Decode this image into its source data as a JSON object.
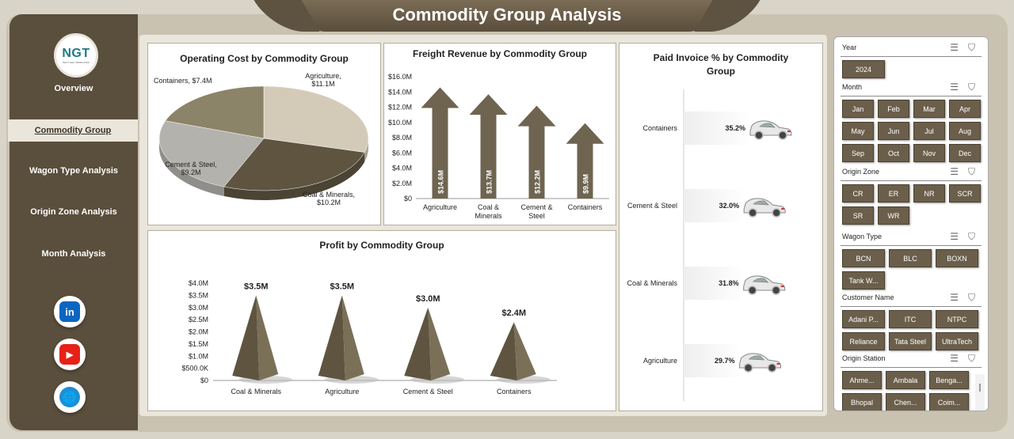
{
  "title": "Commodity Group Analysis",
  "logo": {
    "text": "NGT",
    "sub": "NEXT GEN TEMPLATES"
  },
  "nav": [
    {
      "label": "Overview",
      "active": false
    },
    {
      "label": "Commodity Group",
      "active": true
    },
    {
      "label": "Wagon Type Analysis",
      "active": false
    },
    {
      "label": "Origin Zone Analysis",
      "active": false
    },
    {
      "label": "Month Analysis",
      "active": false
    }
  ],
  "social": [
    {
      "icon": "linkedin-icon",
      "text": "in",
      "color": "#0a66c2"
    },
    {
      "icon": "youtube-icon",
      "text": "▶",
      "color": "#e62117"
    },
    {
      "icon": "globe-icon",
      "text": "🌐",
      "color": "#1c8fd6"
    }
  ],
  "operating_cost": {
    "title": "Operating Cost by Commodity Group",
    "chart_data": {
      "type": "pie",
      "categories": [
        "Agriculture",
        "Coal & Minerals",
        "Cement & Steel",
        "Containers"
      ],
      "values": [
        11.1,
        10.2,
        9.2,
        7.4
      ],
      "labels": [
        "Agriculture, $11.1M",
        "Coal & Minerals, $10.2M",
        "Cement & Steel, $9.2M",
        "Containers, $7.4M"
      ],
      "colors": [
        "#d3cbb8",
        "#5e5440",
        "#b4b2ad",
        "#8c8468"
      ]
    }
  },
  "freight_revenue": {
    "title": "Freight Revenue by Commodity Group",
    "chart_data": {
      "type": "bar",
      "categories": [
        "Agriculture",
        "Coal & Minerals",
        "Cement & Steel",
        "Containers"
      ],
      "values": [
        14.6,
        13.7,
        12.2,
        9.9
      ],
      "data_labels": [
        "$14.6M",
        "$13.7M",
        "$12.2M",
        "$9.9M"
      ],
      "yticks": [
        "$0",
        "$2.0M",
        "$4.0M",
        "$6.0M",
        "$8.0M",
        "$10.0M",
        "$12.0M",
        "$14.0M",
        "$16.0M"
      ],
      "ylim": [
        0,
        16
      ]
    }
  },
  "paid_invoice": {
    "title_line1": "Paid Invoice % by Commodity",
    "title_line2": "Group",
    "chart_data": {
      "type": "bar",
      "categories": [
        "Containers",
        "Cement & Steel",
        "Coal & Minerals",
        "Agriculture"
      ],
      "values": [
        35.2,
        32.0,
        31.8,
        29.7
      ],
      "data_labels": [
        "35.2%",
        "32.0%",
        "31.8%",
        "29.7%"
      ]
    }
  },
  "profit": {
    "title": "Profit by Commodity Group",
    "chart_data": {
      "type": "bar",
      "categories": [
        "Coal & Minerals",
        "Agriculture",
        "Cement & Steel",
        "Containers"
      ],
      "values": [
        3.5,
        3.5,
        3.0,
        2.4
      ],
      "data_labels": [
        "$3.5M",
        "$3.5M",
        "$3.0M",
        "$2.4M"
      ],
      "yticks": [
        "$0",
        "$500.0K",
        "$1.0M",
        "$1.5M",
        "$2.0M",
        "$2.5M",
        "$3.0M",
        "$3.5M",
        "$4.0M"
      ],
      "ylim": [
        0,
        4
      ]
    }
  },
  "slicers": {
    "year": {
      "label": "Year",
      "items": [
        "2024"
      ]
    },
    "month": {
      "label": "Month",
      "items": [
        "Jan",
        "Feb",
        "Mar",
        "Apr",
        "May",
        "Jun",
        "Jul",
        "Aug",
        "Sep",
        "Oct",
        "Nov",
        "Dec"
      ]
    },
    "origin_zone": {
      "label": "Origin Zone",
      "items": [
        "CR",
        "ER",
        "NR",
        "SCR",
        "SR",
        "WR"
      ]
    },
    "wagon_type": {
      "label": "Wagon Type",
      "items": [
        "BCN",
        "BLC",
        "BOXN",
        "Tank W..."
      ]
    },
    "customer_name": {
      "label": "Customer Name",
      "items": [
        "Adani P...",
        "ITC",
        "NTPC",
        "Reliance",
        "Tata Steel",
        "UltraTech"
      ]
    },
    "origin_station": {
      "label": "Origin Station",
      "items": [
        "Ahme...",
        "Ambala",
        "Benga...",
        "Bhopal",
        "Chen...",
        "Coim..."
      ]
    }
  }
}
